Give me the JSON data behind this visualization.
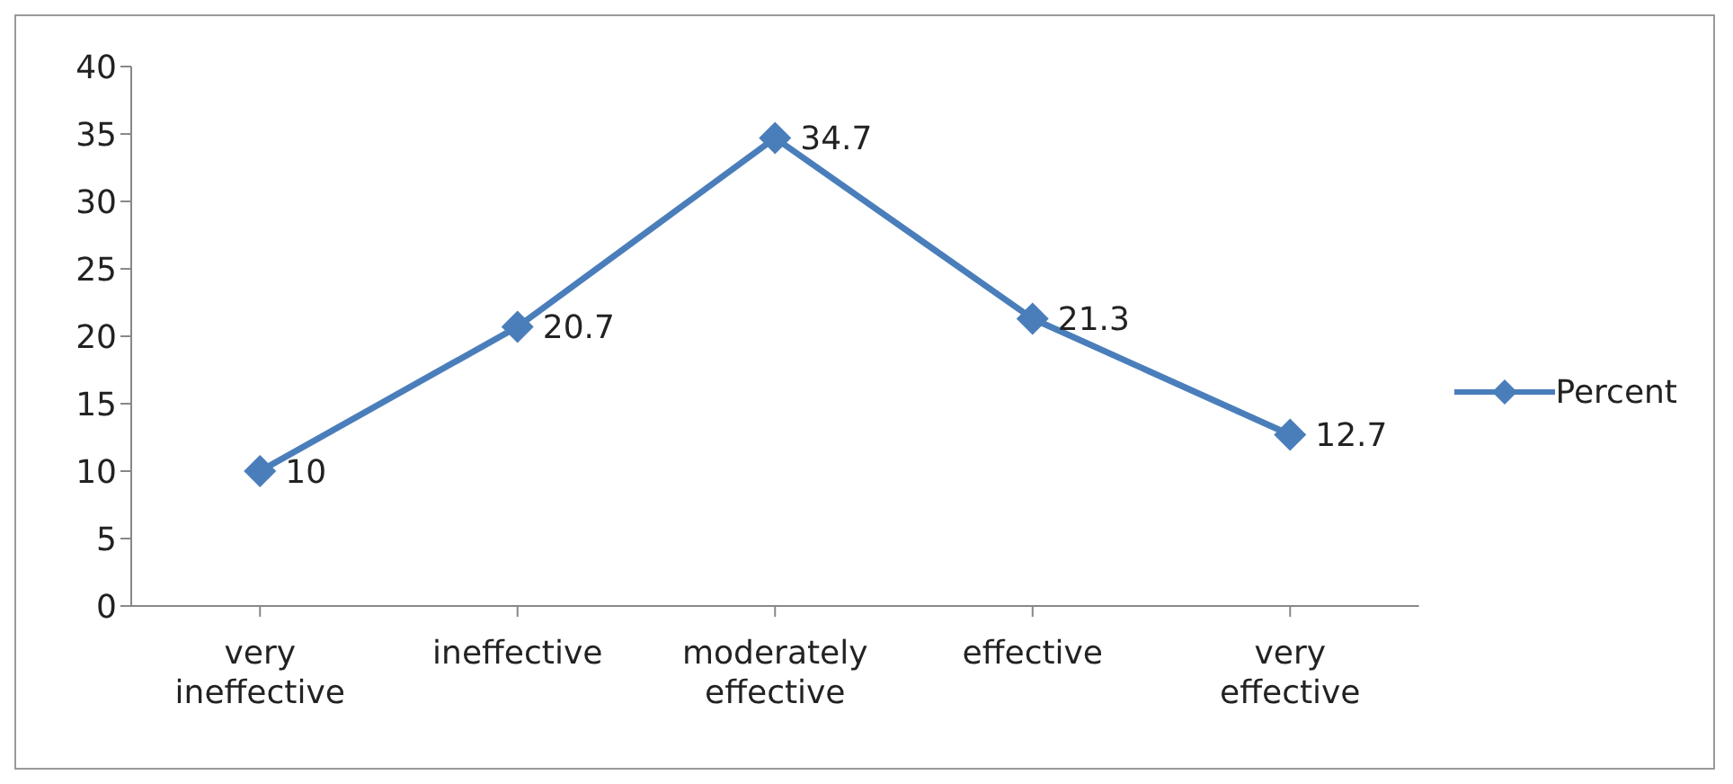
{
  "chart_data": {
    "type": "line",
    "categories": [
      "very ineffective",
      "ineffective",
      "moderately effective",
      "effective",
      "very effective"
    ],
    "series": [
      {
        "name": "Percent",
        "color": "#4a7ebb",
        "values": [
          10,
          20.7,
          34.7,
          21.3,
          12.7
        ]
      }
    ],
    "ylim": [
      0,
      40
    ],
    "yticks": [
      0,
      5,
      10,
      15,
      20,
      25,
      30,
      35,
      40
    ],
    "grid": false,
    "legend": "right",
    "marker": "diamond",
    "line_style": "solid",
    "data_labels": true
  }
}
